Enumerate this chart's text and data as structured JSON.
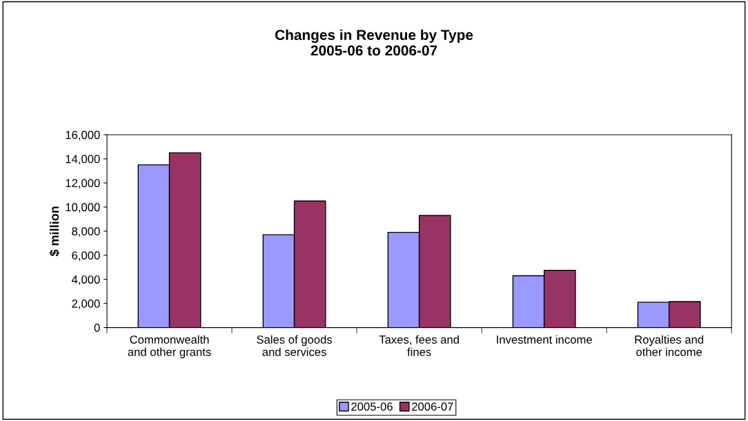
{
  "chart_data": {
    "type": "bar",
    "title": "Changes in Revenue by Type\n2005-06 to 2006-07",
    "ylabel": "$ million",
    "categories": [
      "Commonwealth\nand other grants",
      "Sales of goods\nand services",
      "Taxes, fees and\nfines",
      "Investment income",
      "Royalties and\nother income"
    ],
    "series": [
      {
        "name": "2005-06",
        "color": "#9999ff",
        "values": [
          13500,
          7700,
          7900,
          4300,
          2100
        ]
      },
      {
        "name": "2006-07",
        "color": "#993366",
        "values": [
          14500,
          10500,
          9300,
          4750,
          2150
        ]
      }
    ],
    "ylim": [
      0,
      16000
    ],
    "yticks": [
      {
        "value": 0,
        "label": "0"
      },
      {
        "value": 2000,
        "label": "2,000"
      },
      {
        "value": 4000,
        "label": "4,000"
      },
      {
        "value": 6000,
        "label": "6,000"
      },
      {
        "value": 8000,
        "label": "8,000"
      },
      {
        "value": 10000,
        "label": "10,000"
      },
      {
        "value": 12000,
        "label": "12,000"
      },
      {
        "value": 14000,
        "label": "14,000"
      },
      {
        "value": 16000,
        "label": "16,000"
      }
    ],
    "grid": false,
    "legend": "bottom"
  }
}
